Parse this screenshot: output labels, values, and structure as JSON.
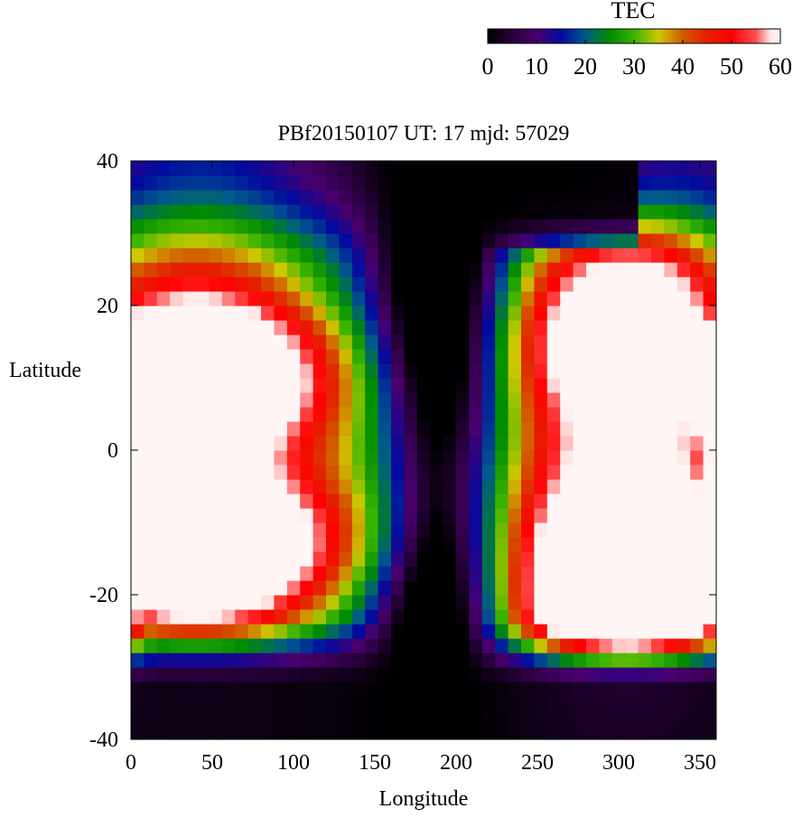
{
  "chart_data": {
    "type": "heatmap",
    "title": "PBf20150107  UT: 17  mjd: 57029",
    "xlabel": "Longitude",
    "ylabel": "Latitude",
    "xlim": [
      0,
      360
    ],
    "ylim": [
      -40,
      40
    ],
    "x_ticks": [
      "0",
      "50",
      "100",
      "150",
      "200",
      "250",
      "300",
      "350"
    ],
    "x_tick_values": [
      0,
      50,
      100,
      150,
      200,
      250,
      300,
      350
    ],
    "y_ticks": [
      "40",
      "20",
      "0",
      "-20",
      "-40"
    ],
    "y_tick_values": [
      40,
      20,
      0,
      -20,
      -40
    ],
    "cell_size": {
      "lon_deg": 8,
      "lat_deg": 2
    },
    "colorbar": {
      "label": "TEC",
      "range": [
        0,
        60
      ],
      "ticks": [
        "0",
        "10",
        "20",
        "30",
        "40",
        "50",
        "60"
      ],
      "tick_values": [
        0,
        10,
        20,
        30,
        40,
        50,
        60
      ],
      "palette": [
        {
          "value": 0,
          "color": "#000000"
        },
        {
          "value": 5,
          "color": "#26003a"
        },
        {
          "value": 10,
          "color": "#4a006e"
        },
        {
          "value": 15,
          "color": "#000aa0"
        },
        {
          "value": 20,
          "color": "#005a8c"
        },
        {
          "value": 25,
          "color": "#008c00"
        },
        {
          "value": 30,
          "color": "#3cb400"
        },
        {
          "value": 35,
          "color": "#cdc800"
        },
        {
          "value": 40,
          "color": "#d25a00"
        },
        {
          "value": 45,
          "color": "#e61e00"
        },
        {
          "value": 50,
          "color": "#ff0000"
        },
        {
          "value": 55,
          "color": "#ff5050"
        },
        {
          "value": 58,
          "color": "#ffe8e8"
        },
        {
          "value": 60,
          "color": "#fff5f5"
        }
      ]
    },
    "tec_features": {
      "description_model": "TEC estimated from colour: saturated (~60) westward/eastward crests, low-TEC band (~5-25) near 170-215 deg longitude, near-zero regions at high latitude edges",
      "anomaly_crests": [
        {
          "lon": 0,
          "lat": 12,
          "value": 60
        },
        {
          "lon": 40,
          "lat": -12,
          "value": 60
        },
        {
          "lon": 300,
          "lat": 0,
          "value": 60
        },
        {
          "lon": 330,
          "lat": 20,
          "value": 60
        },
        {
          "lon": 270,
          "lat": -22,
          "value": 60
        }
      ]
    }
  }
}
